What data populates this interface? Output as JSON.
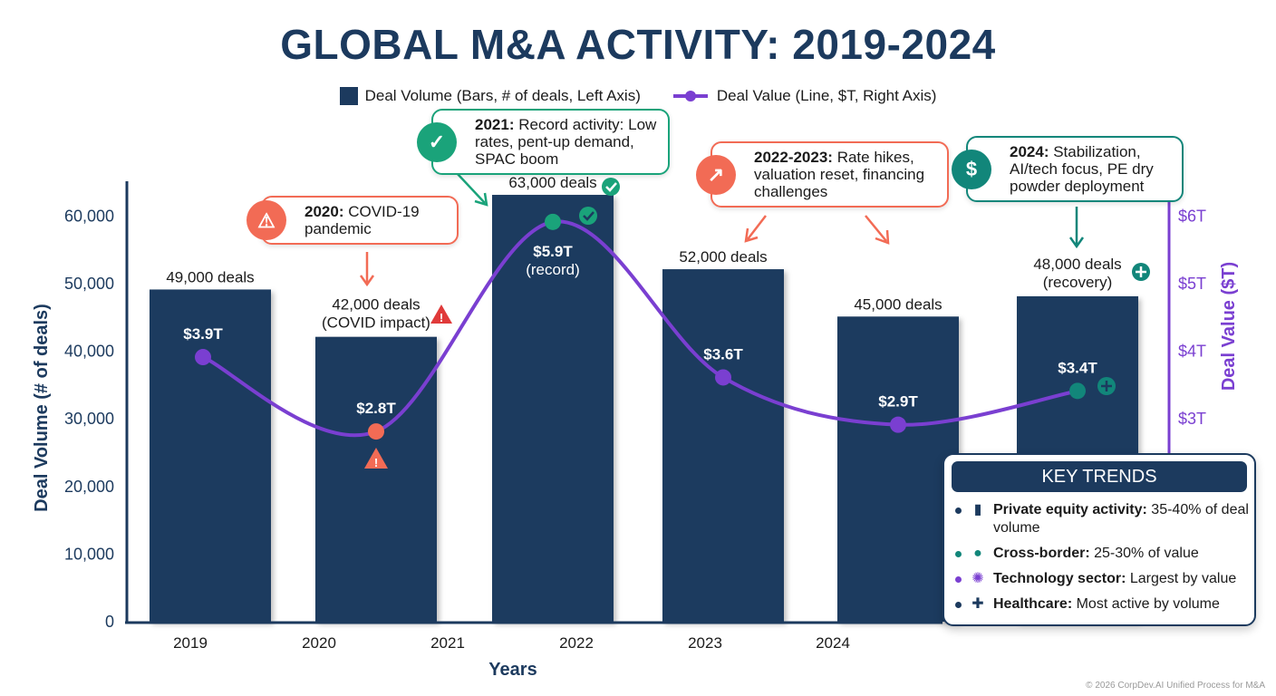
{
  "chart_data": {
    "type": "bar",
    "title": "GLOBAL M&A ACTIVITY: 2019-2024",
    "xlabel": "Years",
    "ylabel": "Deal Volume (# of deals)",
    "y2label": "Deal Value ($T)",
    "x_tick_labels": [
      "2019",
      "2020",
      "2021",
      "2022",
      "2023",
      "2024"
    ],
    "ylim": [
      0,
      65000
    ],
    "y_ticks": [
      "0",
      "10,000",
      "20,000",
      "30,000",
      "40,000",
      "50,000",
      "60,000"
    ],
    "y2lim": [
      0,
      6.5
    ],
    "y2_ticks": [
      "$3T",
      "$4T",
      "$5T",
      "$6T"
    ],
    "grid": false,
    "legend_placement": "top-center",
    "series": [
      {
        "name": "Deal Volume (Bars, # of deals, Left Axis)",
        "type": "bar",
        "color": "#1c3a5e",
        "values": [
          49000,
          42000,
          63000,
          52000,
          45000,
          48000
        ],
        "labels": [
          "49,000 deals",
          "42,000 deals (COVID impact)",
          "63,000 deals",
          "52,000 deals",
          "45,000 deals",
          "48,000 deals (recovery)"
        ]
      },
      {
        "name": "Deal Value (Line, $T, Right Axis)",
        "type": "line",
        "color": "#7a3fd1",
        "values": [
          3.9,
          2.8,
          5.9,
          3.6,
          2.9,
          3.4
        ],
        "labels": [
          "$3.9T",
          "$2.8T",
          "$5.9T (record)",
          "$3.6T",
          "$2.9T",
          "$3.4T"
        ],
        "marker_colors": [
          "#7a3fd1",
          "#f26b55",
          "#1aa37a",
          "#7a3fd1",
          "#7a3fd1",
          "#12867a"
        ]
      }
    ],
    "annotations": [
      {
        "year": "2020",
        "bold": "2020:",
        "text": " COVID-19 pandemic",
        "icon": "warning-icon",
        "color": "#f26b55"
      },
      {
        "year": "2021",
        "bold": "2021:",
        "text": " Record activity: Low rates, pent-up demand, SPAC boom",
        "icon": "check-circle-icon",
        "color": "#1aa37a"
      },
      {
        "year": "2022-2023",
        "bold": "2022-2023:",
        "text": " Rate hikes, valuation reset, financing challenges",
        "icon": "chart-up-icon",
        "color": "#f26b55"
      },
      {
        "year": "2024",
        "bold": "2024:",
        "text": " Stabilization, AI/tech focus, PE dry powder deployment",
        "icon": "money-hand-icon",
        "color": "#12867a"
      }
    ]
  },
  "key_trends": {
    "title": "KEY TRENDS",
    "items": [
      {
        "bold": "Private equity activity:",
        "text": " 35-40% of deal volume",
        "icon": "bar-people-icon",
        "color": "#1c3a5e"
      },
      {
        "bold": "Cross-border:",
        "text": " 25-30% of value",
        "icon": "globe-icon",
        "color": "#12867a"
      },
      {
        "bold": "Technology sector:",
        "text": " Largest by value",
        "icon": "network-icon",
        "color": "#7a3fd1"
      },
      {
        "bold": "Healthcare:",
        "text": " Most active by volume",
        "icon": "medical-kit-icon",
        "color": "#1c3a5e"
      }
    ]
  },
  "footer": "© 2026 CorpDev.AI Unified Process for M&A"
}
